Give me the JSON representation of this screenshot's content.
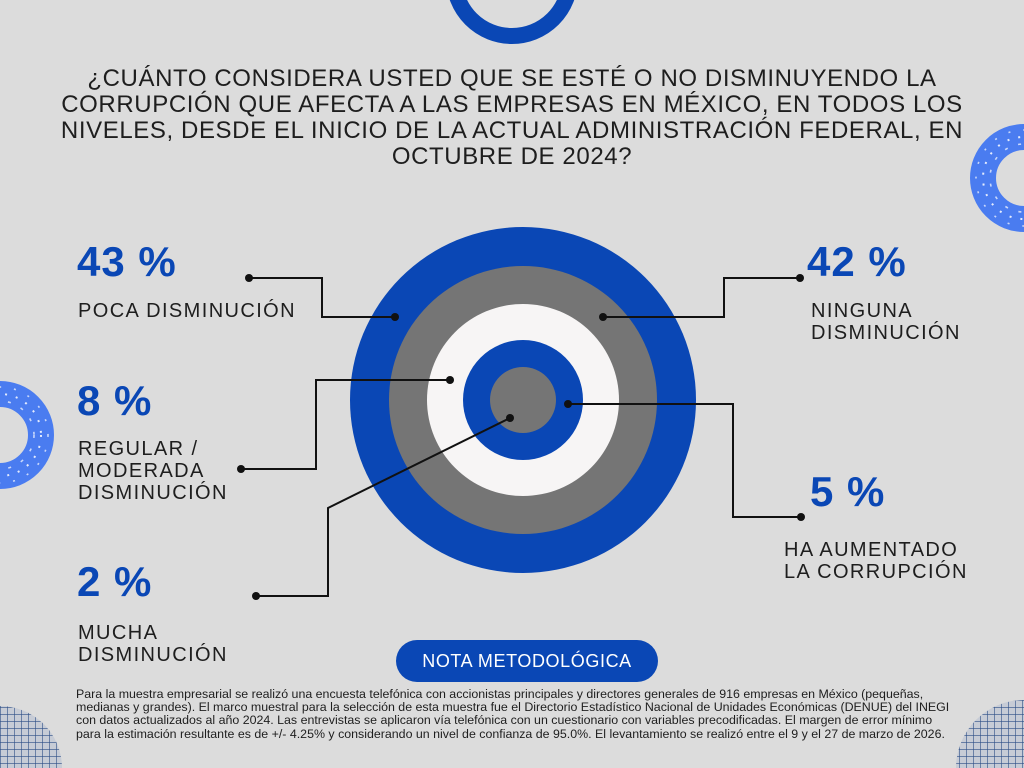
{
  "question": "¿CUÁNTO CONSIDERA USTED QUE SE ESTÉ O NO DISMINUYENDO LA CORRUPCIÓN QUE AFECTA A LAS EMPRESAS EN MÉXICO, EN TODOS LOS NIVELES, DESDE EL INICIO DE LA ACTUAL ADMINISTRACIÓN FEDERAL, EN OCTUBRE DE 2024?",
  "colors": {
    "accent": "#0a47b5",
    "gray": "#757575",
    "white": "#f7f5f5",
    "background": "#dcdcdc",
    "text": "#1e1e1e"
  },
  "chart_data": {
    "type": "pie",
    "title": "¿CUÁNTO CONSIDERA USTED QUE SE ESTÉ O NO DISMINUYENDO LA CORRUPCIÓN QUE AFECTA A LAS EMPRESAS EN MÉXICO, EN TODOS LOS NIVELES, DESDE EL INICIO DE LA ACTUAL ADMINISTRACIÓN FEDERAL, EN OCTUBRE DE 2024?",
    "style": "concentric-rings",
    "categories": [
      "POCA DISMINUCIÓN",
      "NINGUNA DISMINUCIÓN",
      "REGULAR / MODERADA DISMINUCIÓN",
      "HA AUMENTADO LA CORRUPCIÓN",
      "MUCHA DISMINUCIÓN"
    ],
    "values": [
      43,
      42,
      8,
      5,
      2
    ],
    "value_labels": [
      "43 %",
      "42 %",
      "8 %",
      "5 %",
      "2 %"
    ],
    "unit": "%"
  },
  "labels": {
    "poca": {
      "pct": "43 %",
      "lines": [
        "POCA DISMINUCIÓN"
      ]
    },
    "ninguna": {
      "pct": "42 %",
      "lines": [
        "NINGUNA",
        "DISMINUCIÓN"
      ]
    },
    "regular": {
      "pct": "8 %",
      "lines": [
        "REGULAR /",
        "MODERADA",
        "DISMINUCIÓN"
      ]
    },
    "aumentado": {
      "pct": "5 %",
      "lines": [
        "HA AUMENTADO",
        "LA CORRUPCIÓN"
      ]
    },
    "mucha": {
      "pct": "2 %",
      "lines": [
        "MUCHA",
        "DISMINUCIÓN"
      ]
    }
  },
  "nota": {
    "button": "NOTA METODOLÓGICA",
    "text": "Para la muestra empresarial se realizó una encuesta telefónica con accionistas principales y directores generales de 916 empresas en México (pequeñas, medianas y grandes). El marco muestral para la selección de esta muestra fue el Directorio Estadístico Nacional de Unidades Económicas (DENUE) del INEGI con datos actualizados al año 2024. Las entrevistas se aplicaron vía telefónica con un cuestionario con variables precodificadas. El margen de error mínimo para la estimación resultante es de +/- 4.25% y considerando un nivel de confianza de 95.0%. El levantamiento se realizó entre el 9 y el 27 de marzo de 2026."
  }
}
